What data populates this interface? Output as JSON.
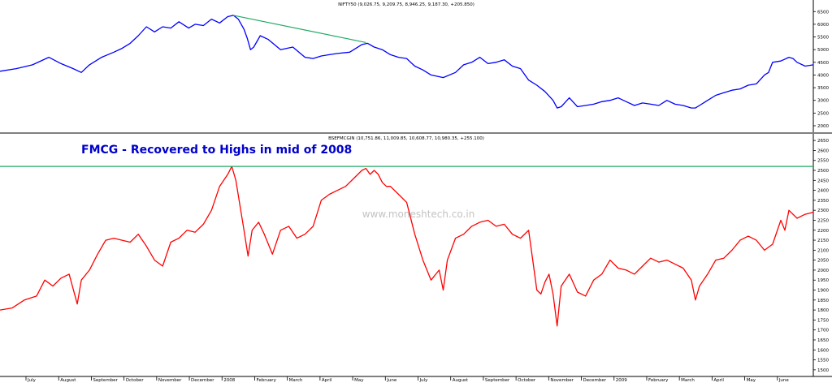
{
  "chart_data": [
    {
      "type": "line",
      "title": "NIFTY50 (9,026.75, 9,209.75, 8,946.25, 9,187.30, +205.850)",
      "ylim": [
        2000,
        6700
      ],
      "y_ticks": [
        "2000",
        "2500",
        "3000",
        "3500",
        "4000",
        "4500",
        "5000",
        "5500",
        "6000",
        "6500"
      ],
      "series_color": "#0000ff",
      "grid": false,
      "axis_side": "right",
      "x": [
        0,
        20,
        40,
        60,
        75,
        90,
        100,
        110,
        125,
        140,
        150,
        160,
        170,
        180,
        190,
        200,
        210,
        220,
        232,
        240,
        250,
        260,
        270,
        280,
        287,
        293,
        300,
        304,
        308,
        312,
        320,
        330,
        345,
        360,
        375,
        385,
        395,
        405,
        415,
        430,
        445,
        452,
        460,
        470,
        480,
        490,
        500,
        510,
        520,
        530,
        545,
        560,
        570,
        580,
        590,
        600,
        610,
        620,
        630,
        640,
        650,
        660,
        670,
        680,
        685,
        690,
        700,
        710,
        720,
        730,
        740,
        750,
        760,
        770,
        780,
        790,
        800,
        810,
        820,
        830,
        840,
        850,
        855,
        860,
        870,
        880,
        890,
        900,
        910,
        920,
        930,
        940,
        945,
        950,
        960,
        970,
        975,
        980,
        990,
        1000
      ],
      "values": [
        4150,
        4250,
        4400,
        4700,
        4450,
        4250,
        4100,
        4400,
        4700,
        4900,
        5050,
        5250,
        5550,
        5900,
        5700,
        5900,
        5850,
        6100,
        5850,
        6000,
        5950,
        6200,
        6050,
        6300,
        6350,
        6200,
        5800,
        5450,
        5000,
        5100,
        5550,
        5400,
        5000,
        5100,
        4700,
        4650,
        4750,
        4800,
        4850,
        4900,
        5200,
        5250,
        5100,
        5000,
        4800,
        4700,
        4650,
        4350,
        4200,
        4000,
        3900,
        4100,
        4400,
        4500,
        4700,
        4450,
        4500,
        4600,
        4350,
        4250,
        3800,
        3600,
        3350,
        3000,
        2700,
        2750,
        3100,
        2750,
        2800,
        2850,
        2950,
        3000,
        3100,
        2950,
        2800,
        2900,
        2850,
        2800,
        3000,
        2850,
        2800,
        2700,
        2700,
        2800,
        3000,
        3200,
        3300,
        3400,
        3450,
        3600,
        3650,
        4000,
        4100,
        4500,
        4550,
        4700,
        4650,
        4500,
        4350,
        4400
      ]
    },
    {
      "type": "line",
      "title": "BSEFMCGIN (10,751.86, 11,009.85, 10,608.77, 10,980.35, +255.100)",
      "annotation": "FMCG - Recovered to Highs in mid of 2008",
      "watermark": "www.moneshtech.co.in",
      "ylim": [
        1475,
        2675
      ],
      "y_ticks": [
        "1500",
        "1550",
        "1600",
        "1650",
        "1700",
        "1750",
        "1800",
        "1850",
        "1900",
        "1950",
        "2000",
        "2050",
        "2100",
        "2150",
        "2200",
        "2250",
        "2300",
        "2350",
        "2400",
        "2450",
        "2500",
        "2550",
        "2600",
        "2650"
      ],
      "series_color": "#ff0000",
      "grid": false,
      "axis_side": "right",
      "x": [
        0,
        15,
        30,
        45,
        55,
        65,
        75,
        85,
        95,
        100,
        110,
        120,
        130,
        140,
        150,
        160,
        170,
        180,
        190,
        200,
        210,
        220,
        230,
        240,
        250,
        260,
        270,
        280,
        285,
        290,
        296,
        300,
        305,
        310,
        318,
        325,
        335,
        345,
        355,
        365,
        375,
        385,
        395,
        405,
        415,
        425,
        435,
        445,
        450,
        455,
        460,
        465,
        470,
        475,
        480,
        490,
        500,
        510,
        520,
        530,
        540,
        545,
        550,
        560,
        570,
        580,
        590,
        600,
        610,
        620,
        630,
        640,
        650,
        655,
        660,
        665,
        670,
        675,
        680,
        685,
        690,
        700,
        710,
        720,
        730,
        740,
        750,
        760,
        770,
        780,
        790,
        800,
        810,
        820,
        830,
        840,
        850,
        855,
        860,
        870,
        880,
        890,
        900,
        910,
        920,
        930,
        940,
        950,
        960,
        965,
        970,
        980,
        990,
        1000
      ],
      "values": [
        1800,
        1810,
        1850,
        1870,
        1950,
        1920,
        1960,
        1980,
        1830,
        1950,
        2000,
        2080,
        2150,
        2160,
        2150,
        2140,
        2180,
        2120,
        2050,
        2020,
        2140,
        2160,
        2200,
        2190,
        2230,
        2300,
        2420,
        2480,
        2520,
        2450,
        2300,
        2200,
        2070,
        2200,
        2240,
        2180,
        2080,
        2200,
        2220,
        2160,
        2180,
        2220,
        2350,
        2380,
        2400,
        2420,
        2460,
        2500,
        2510,
        2480,
        2500,
        2480,
        2440,
        2420,
        2420,
        2380,
        2340,
        2180,
        2050,
        1950,
        2000,
        1900,
        2050,
        2160,
        2180,
        2220,
        2240,
        2250,
        2220,
        2230,
        2180,
        2160,
        2200,
        2050,
        1900,
        1880,
        1940,
        1980,
        1880,
        1720,
        1920,
        1980,
        1890,
        1870,
        1950,
        1980,
        2050,
        2010,
        2000,
        1980,
        2020,
        2060,
        2040,
        2050,
        2030,
        2010,
        1950,
        1850,
        1920,
        1980,
        2050,
        2060,
        2100,
        2150,
        2170,
        2150,
        2100,
        2130,
        2250,
        2200,
        2300,
        2260,
        2280,
        2290
      ]
    }
  ],
  "x_axis": {
    "labels": [
      "July",
      "August",
      "September",
      "October",
      "November",
      "December",
      "2008",
      "February",
      "March",
      "April",
      "May",
      "June",
      "July",
      "August",
      "September",
      "October",
      "November",
      "December",
      "2009",
      "February",
      "March",
      "April",
      "May",
      "June"
    ],
    "range": [
      0,
      1000
    ]
  },
  "colors": {
    "axis": "#000000",
    "annotation": "#0000cc",
    "reference_line": "#22aa66"
  },
  "reference_lines": {
    "top_trend_from": [
      287,
      6350
    ],
    "top_trend_to": [
      450,
      5280
    ],
    "bottom_level": 2520
  }
}
